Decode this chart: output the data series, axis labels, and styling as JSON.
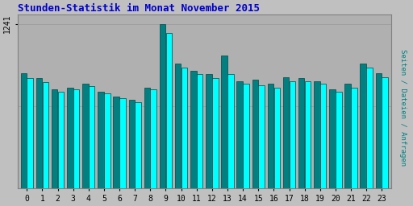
{
  "title": "Stunden-Statistik im Monat November 2015",
  "title_color": "#0000cc",
  "ylabel": "Seiten / Dateien / Anfragen",
  "ylabel_color": "#008080",
  "hours": [
    0,
    1,
    2,
    3,
    4,
    5,
    6,
    7,
    8,
    9,
    10,
    11,
    12,
    13,
    14,
    15,
    16,
    17,
    18,
    19,
    20,
    21,
    22,
    23
  ],
  "bar1_values": [
    870,
    830,
    750,
    760,
    790,
    730,
    690,
    670,
    760,
    1241,
    940,
    890,
    860,
    1000,
    810,
    820,
    790,
    840,
    830,
    810,
    750,
    790,
    940,
    870
  ],
  "bar2_values": [
    830,
    800,
    730,
    750,
    770,
    720,
    680,
    650,
    750,
    1170,
    910,
    860,
    830,
    860,
    790,
    780,
    760,
    810,
    810,
    790,
    730,
    760,
    910,
    840
  ],
  "bar1_color": "#008080",
  "bar2_color": "#00ffff",
  "bar_edge_color": "#004444",
  "background_color": "#c0c0c0",
  "plot_bg_color": "#b0b0b0",
  "ymax": 1310,
  "ytick_val": 1241,
  "ytick_label": "1241"
}
